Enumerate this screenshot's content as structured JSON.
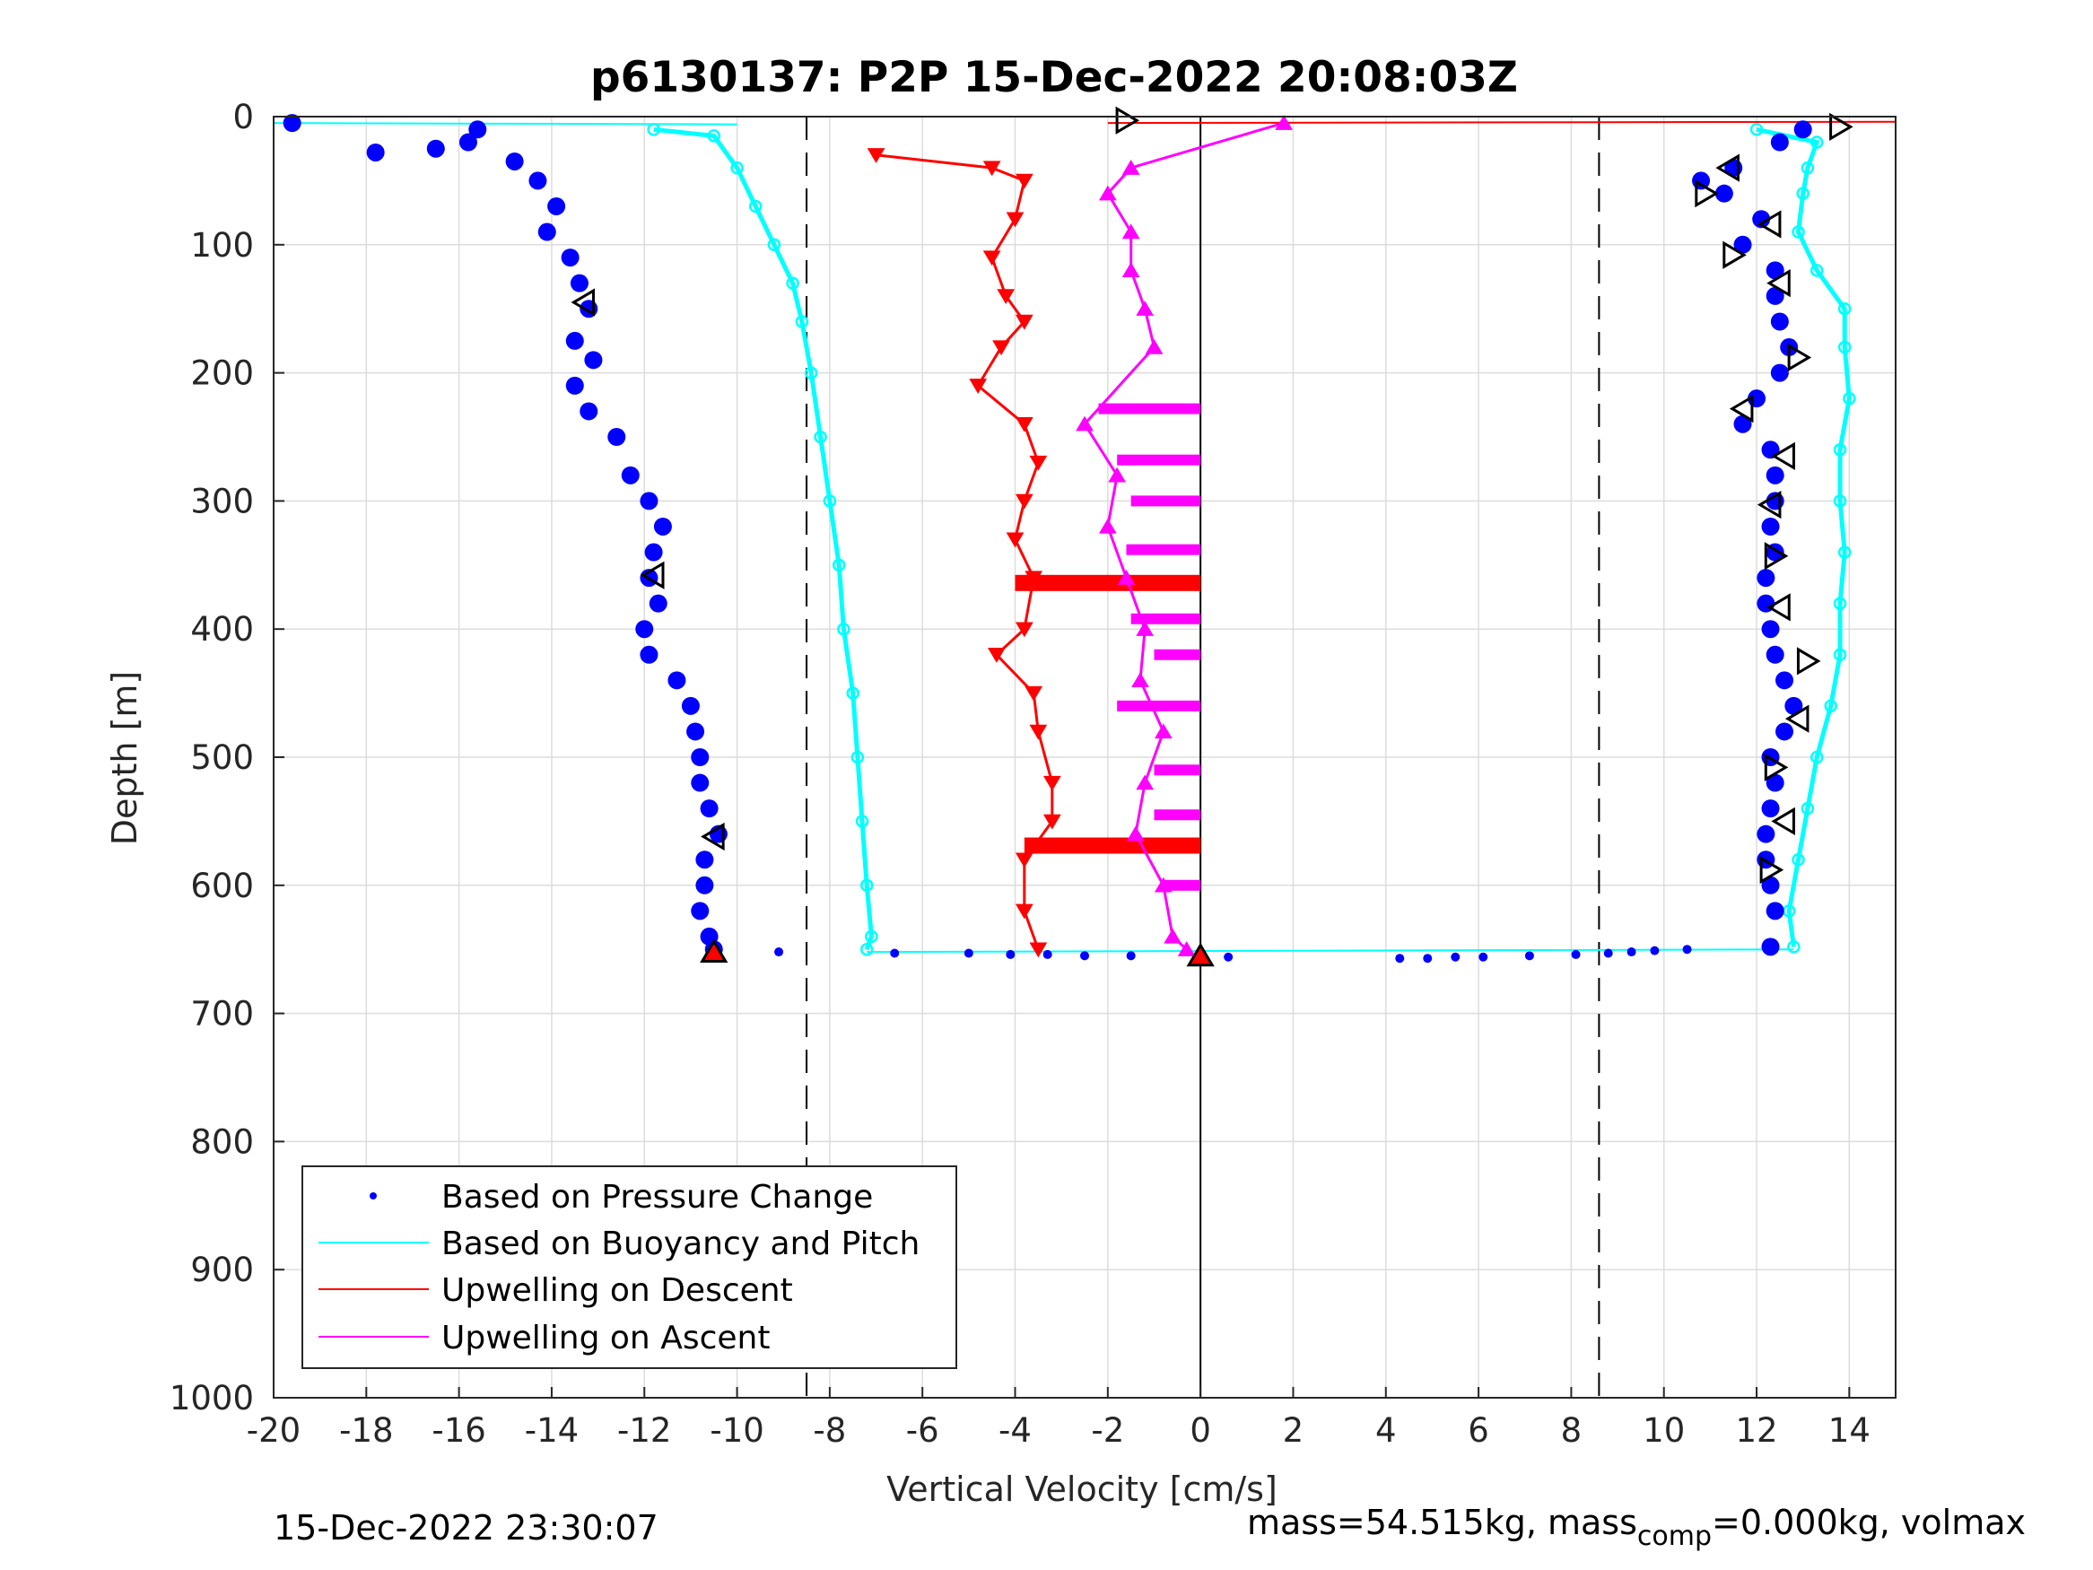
{
  "chart_data": {
    "type": "scatter",
    "title": "p6130137: P2P 15-Dec-2022 20:08:03Z",
    "xlabel": "Vertical Velocity [cm/s]",
    "ylabel": "Depth [m]",
    "xlim": [
      -20,
      15
    ],
    "ylim": [
      1000,
      0
    ],
    "y_reversed": true,
    "grid": true,
    "legend_position": "bottom-left",
    "x_ticks": [
      "-20",
      "-18",
      "-16",
      "-14",
      "-12",
      "-10",
      "-8",
      "-6",
      "-4",
      "-2",
      "0",
      "2",
      "4",
      "6",
      "8",
      "10",
      "12",
      "14"
    ],
    "y_ticks": [
      "0",
      "100",
      "200",
      "300",
      "400",
      "500",
      "600",
      "700",
      "800",
      "900",
      "1000"
    ],
    "vertical_reference_lines": [
      {
        "x": -8.5,
        "style": "dashed"
      },
      {
        "x": 8.6,
        "style": "dashed"
      },
      {
        "x": 0,
        "style": "solid"
      }
    ],
    "series": [
      {
        "name": "Based on Pressure Change",
        "kind": "dots",
        "color": "#0000ff",
        "descent": [
          [
            -19.6,
            5
          ],
          [
            -17.8,
            28
          ],
          [
            -16.5,
            25
          ],
          [
            -15.8,
            20
          ],
          [
            -15.6,
            10
          ],
          [
            -14.8,
            35
          ],
          [
            -14.3,
            50
          ],
          [
            -13.9,
            70
          ],
          [
            -14.1,
            90
          ],
          [
            -13.6,
            110
          ],
          [
            -13.4,
            130
          ],
          [
            -13.2,
            150
          ],
          [
            -13.5,
            175
          ],
          [
            -13.1,
            190
          ],
          [
            -13.5,
            210
          ],
          [
            -13.2,
            230
          ],
          [
            -12.6,
            250
          ],
          [
            -12.3,
            280
          ],
          [
            -11.9,
            300
          ],
          [
            -11.6,
            320
          ],
          [
            -11.8,
            340
          ],
          [
            -11.9,
            360
          ],
          [
            -11.7,
            380
          ],
          [
            -12.0,
            400
          ],
          [
            -11.9,
            420
          ],
          [
            -11.3,
            440
          ],
          [
            -11.0,
            460
          ],
          [
            -10.9,
            480
          ],
          [
            -10.8,
            500
          ],
          [
            -10.8,
            520
          ],
          [
            -10.6,
            540
          ],
          [
            -10.4,
            560
          ],
          [
            -10.7,
            580
          ],
          [
            -10.7,
            600
          ],
          [
            -10.8,
            620
          ],
          [
            -10.6,
            640
          ],
          [
            -10.5,
            650
          ]
        ],
        "ascent": [
          [
            12.3,
            648
          ],
          [
            12.4,
            620
          ],
          [
            12.3,
            600
          ],
          [
            12.2,
            580
          ],
          [
            12.2,
            560
          ],
          [
            12.3,
            540
          ],
          [
            12.4,
            520
          ],
          [
            12.3,
            500
          ],
          [
            12.6,
            480
          ],
          [
            12.8,
            460
          ],
          [
            12.6,
            440
          ],
          [
            12.4,
            420
          ],
          [
            12.3,
            400
          ],
          [
            12.2,
            380
          ],
          [
            12.2,
            360
          ],
          [
            12.4,
            340
          ],
          [
            12.3,
            320
          ],
          [
            12.4,
            300
          ],
          [
            12.4,
            280
          ],
          [
            12.3,
            260
          ],
          [
            11.7,
            240
          ],
          [
            12.0,
            220
          ],
          [
            12.5,
            200
          ],
          [
            12.7,
            180
          ],
          [
            12.5,
            160
          ],
          [
            12.4,
            140
          ],
          [
            12.4,
            120
          ],
          [
            11.7,
            100
          ],
          [
            12.1,
            80
          ],
          [
            11.3,
            60
          ],
          [
            10.8,
            50
          ],
          [
            11.5,
            40
          ],
          [
            12.5,
            20
          ],
          [
            13.0,
            10
          ]
        ],
        "bottom_transition": [
          [
            -9.1,
            652
          ],
          [
            -6.6,
            653
          ],
          [
            -5.0,
            653
          ],
          [
            -4.1,
            654
          ],
          [
            -3.3,
            654
          ],
          [
            -2.5,
            655
          ],
          [
            -1.5,
            655
          ],
          [
            0.6,
            656
          ],
          [
            4.3,
            657
          ],
          [
            4.9,
            657
          ],
          [
            5.5,
            656
          ],
          [
            6.1,
            656
          ],
          [
            7.1,
            655
          ],
          [
            8.1,
            654
          ],
          [
            8.8,
            653
          ],
          [
            9.3,
            652
          ],
          [
            9.8,
            651
          ],
          [
            10.5,
            650
          ]
        ]
      },
      {
        "name": "Based on Buoyancy and Pitch",
        "kind": "line",
        "color": "#00ffff",
        "descent": [
          [
            -11.8,
            10
          ],
          [
            -10.5,
            15
          ],
          [
            -10.0,
            40
          ],
          [
            -9.6,
            70
          ],
          [
            -9.2,
            100
          ],
          [
            -8.8,
            130
          ],
          [
            -8.6,
            160
          ],
          [
            -8.4,
            200
          ],
          [
            -8.2,
            250
          ],
          [
            -8.0,
            300
          ],
          [
            -7.8,
            350
          ],
          [
            -7.7,
            400
          ],
          [
            -7.5,
            450
          ],
          [
            -7.4,
            500
          ],
          [
            -7.3,
            550
          ],
          [
            -7.2,
            600
          ],
          [
            -7.1,
            640
          ],
          [
            -7.2,
            650
          ]
        ],
        "ascent": [
          [
            12.8,
            648
          ],
          [
            12.7,
            620
          ],
          [
            12.9,
            580
          ],
          [
            13.1,
            540
          ],
          [
            13.3,
            500
          ],
          [
            13.6,
            460
          ],
          [
            13.8,
            420
          ],
          [
            13.8,
            380
          ],
          [
            13.9,
            340
          ],
          [
            13.8,
            300
          ],
          [
            13.8,
            260
          ],
          [
            14.0,
            220
          ],
          [
            13.9,
            180
          ],
          [
            13.9,
            150
          ],
          [
            13.3,
            120
          ],
          [
            12.9,
            90
          ],
          [
            13.0,
            60
          ],
          [
            13.1,
            40
          ],
          [
            13.3,
            20
          ],
          [
            12.0,
            10
          ]
        ],
        "surface_line": [
          [
            -20,
            5
          ],
          [
            -10,
            6
          ]
        ],
        "bottom_line": [
          [
            -7.2,
            652
          ],
          [
            12.8,
            650
          ]
        ]
      },
      {
        "name": "Upwelling on Descent",
        "kind": "triangles-down",
        "color": "#ff0000",
        "points": [
          [
            -7.0,
            30
          ],
          [
            -4.5,
            40
          ],
          [
            -3.8,
            50
          ],
          [
            -4.0,
            80
          ],
          [
            -4.5,
            110
          ],
          [
            -4.2,
            140
          ],
          [
            -3.8,
            160
          ],
          [
            -4.3,
            180
          ],
          [
            -4.8,
            210
          ],
          [
            -3.8,
            240
          ],
          [
            -3.5,
            270
          ],
          [
            -3.8,
            300
          ],
          [
            -4.0,
            330
          ],
          [
            -3.6,
            360
          ],
          [
            -3.8,
            400
          ],
          [
            -4.4,
            420
          ],
          [
            -3.6,
            450
          ],
          [
            -3.5,
            480
          ],
          [
            -3.2,
            520
          ],
          [
            -3.2,
            550
          ],
          [
            -3.8,
            580
          ],
          [
            -3.8,
            620
          ],
          [
            -3.5,
            650
          ]
        ],
        "bars": [
          [
            -4.0,
            0,
            364
          ],
          [
            -3.8,
            0,
            569
          ]
        ],
        "surface_segment": [
          [
            -2.0,
            5
          ],
          [
            15,
            4
          ]
        ]
      },
      {
        "name": "Upwelling on Ascent",
        "kind": "triangles-up",
        "color": "#ff00ff",
        "points": [
          [
            1.8,
            5
          ],
          [
            -1.5,
            40
          ],
          [
            -2.0,
            60
          ],
          [
            -1.5,
            90
          ],
          [
            -1.5,
            120
          ],
          [
            -1.2,
            150
          ],
          [
            -1.0,
            180
          ],
          [
            -2.5,
            240
          ],
          [
            -1.8,
            280
          ],
          [
            -2.0,
            320
          ],
          [
            -1.6,
            360
          ],
          [
            -1.2,
            400
          ],
          [
            -1.3,
            440
          ],
          [
            -0.8,
            480
          ],
          [
            -1.2,
            520
          ],
          [
            -1.4,
            560
          ],
          [
            -0.8,
            600
          ],
          [
            -0.6,
            640
          ],
          [
            -0.3,
            650
          ]
        ],
        "bars": [
          [
            -2.2,
            0,
            228
          ],
          [
            -1.8,
            0,
            268
          ],
          [
            -1.5,
            0,
            300
          ],
          [
            -1.6,
            0,
            338
          ],
          [
            -1.5,
            0,
            392
          ],
          [
            -1.0,
            0,
            420
          ],
          [
            -1.8,
            0,
            460
          ],
          [
            -1.0,
            0,
            510
          ],
          [
            -1.0,
            0,
            545
          ],
          [
            -0.8,
            0,
            600
          ]
        ]
      }
    ],
    "markers": [
      {
        "shape": "triangle-right",
        "x": -1.6,
        "y": 3
      },
      {
        "shape": "triangle-right",
        "x": 13.8,
        "y": 8
      },
      {
        "shape": "triangle-left",
        "x": -13.3,
        "y": 145
      },
      {
        "shape": "triangle-left",
        "x": -11.8,
        "y": 358
      },
      {
        "shape": "triangle-left",
        "x": -10.5,
        "y": 562
      },
      {
        "shape": "triangle-up",
        "x": -10.5,
        "y": 652,
        "fill": "#ff0000"
      },
      {
        "shape": "triangle-up",
        "x": 0,
        "y": 655,
        "fill": "#ff0000"
      },
      {
        "shape": "triangle-left",
        "x": 11.4,
        "y": 40
      },
      {
        "shape": "triangle-right",
        "x": 10.9,
        "y": 60
      },
      {
        "shape": "triangle-left",
        "x": 12.3,
        "y": 84
      },
      {
        "shape": "triangle-right",
        "x": 11.5,
        "y": 108
      },
      {
        "shape": "triangle-left",
        "x": 12.5,
        "y": 130
      },
      {
        "shape": "triangle-right",
        "x": 12.9,
        "y": 188
      },
      {
        "shape": "triangle-left",
        "x": 11.7,
        "y": 228
      },
      {
        "shape": "triangle-left",
        "x": 12.6,
        "y": 265
      },
      {
        "shape": "triangle-left",
        "x": 12.3,
        "y": 303
      },
      {
        "shape": "triangle-right",
        "x": 12.4,
        "y": 343
      },
      {
        "shape": "triangle-left",
        "x": 12.5,
        "y": 383
      },
      {
        "shape": "triangle-right",
        "x": 13.1,
        "y": 425
      },
      {
        "shape": "triangle-left",
        "x": 12.9,
        "y": 470
      },
      {
        "shape": "triangle-right",
        "x": 12.4,
        "y": 508
      },
      {
        "shape": "triangle-left",
        "x": 12.6,
        "y": 550
      },
      {
        "shape": "triangle-right",
        "x": 12.3,
        "y": 588
      }
    ]
  },
  "footer": {
    "timestamp": "15-Dec-2022 23:30:07",
    "mass_prefix": "mass=54.515kg, mass",
    "mass_subscript": "comp",
    "mass_suffix": "=0.000kg, volmax"
  }
}
